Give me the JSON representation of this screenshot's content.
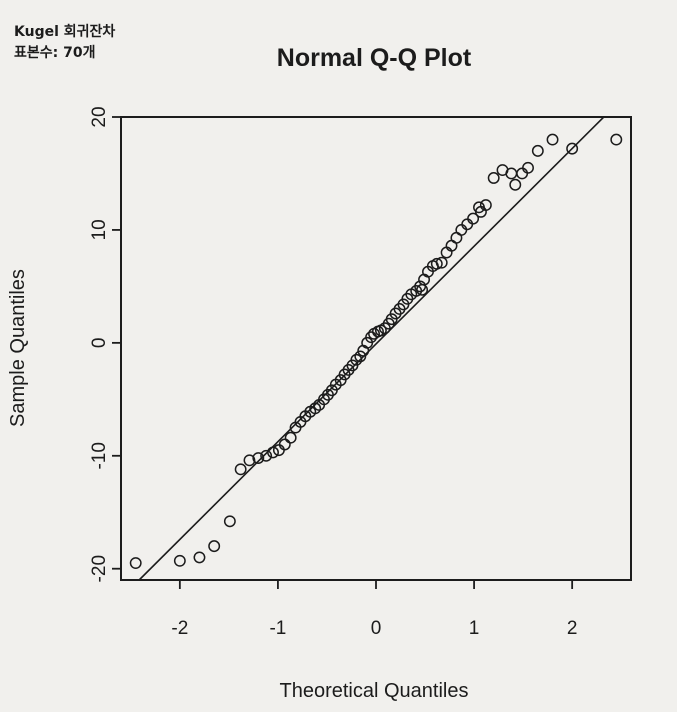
{
  "caption": {
    "line1": "Kugel 회귀잔차",
    "line2": "표본수: 70개"
  },
  "chart_data": {
    "type": "scatter",
    "title": "Normal Q-Q Plot",
    "xlabel": "Theoretical Quantiles",
    "ylabel": "Sample Quantiles",
    "xlim": [
      -2.6,
      2.6
    ],
    "ylim": [
      -21,
      20
    ],
    "xticks": [
      -2,
      -1,
      0,
      1,
      2
    ],
    "yticks": [
      -20,
      -10,
      0,
      10,
      20
    ],
    "xtick_labels": [
      "-2",
      "-1",
      "0",
      "1",
      "2"
    ],
    "ytick_labels": [
      "-20",
      "-10",
      "0",
      "10",
      "20"
    ],
    "grid": false,
    "legend": "none",
    "marker": "open-circle",
    "reference_line": {
      "x": [
        -2.6,
        2.6
      ],
      "y": [
        -22.6,
        22.4
      ]
    },
    "points": {
      "x": [
        -2.45,
        -2.0,
        -1.8,
        -1.65,
        -1.49,
        -1.38,
        -1.29,
        -1.2,
        -1.12,
        -1.05,
        -0.99,
        -0.93,
        -0.87,
        -0.82,
        -0.77,
        -0.72,
        -0.67,
        -0.62,
        -0.58,
        -0.53,
        -0.49,
        -0.45,
        -0.41,
        -0.36,
        -0.32,
        -0.28,
        -0.24,
        -0.2,
        -0.16,
        -0.13,
        -0.09,
        -0.05,
        -0.02,
        0.02,
        0.05,
        0.09,
        0.13,
        0.16,
        0.2,
        0.24,
        0.28,
        0.32,
        0.36,
        0.41,
        0.45,
        0.49,
        0.53,
        0.58,
        0.62,
        0.67,
        0.72,
        0.77,
        0.82,
        0.87,
        0.93,
        0.99,
        1.05,
        1.12,
        1.2,
        1.29,
        1.38,
        1.49,
        1.65,
        1.8,
        2.0,
        2.45,
        1.42,
        1.55,
        1.07,
        0.47
      ],
      "y": [
        -19.5,
        -19.3,
        -19.0,
        -18.0,
        -15.8,
        -11.2,
        -10.4,
        -10.2,
        -10.0,
        -9.7,
        -9.5,
        -9.0,
        -8.4,
        -7.5,
        -7.0,
        -6.5,
        -6.1,
        -5.8,
        -5.5,
        -5.0,
        -4.6,
        -4.2,
        -3.7,
        -3.3,
        -2.8,
        -2.4,
        -2.0,
        -1.5,
        -1.2,
        -0.7,
        0.0,
        0.5,
        0.8,
        1.0,
        1.1,
        1.3,
        1.7,
        2.1,
        2.6,
        3.0,
        3.4,
        3.9,
        4.3,
        4.6,
        5.0,
        5.6,
        6.3,
        6.8,
        7.0,
        7.1,
        8.0,
        8.6,
        9.3,
        10.0,
        10.5,
        11.0,
        12.0,
        12.2,
        14.6,
        15.3,
        15.0,
        15.0,
        17.0,
        18.0,
        17.2,
        18.0,
        14.0,
        15.5,
        11.6,
        4.7
      ]
    }
  },
  "colors": {
    "background": "#f1f0ed",
    "ink": "#1c1c1c"
  }
}
